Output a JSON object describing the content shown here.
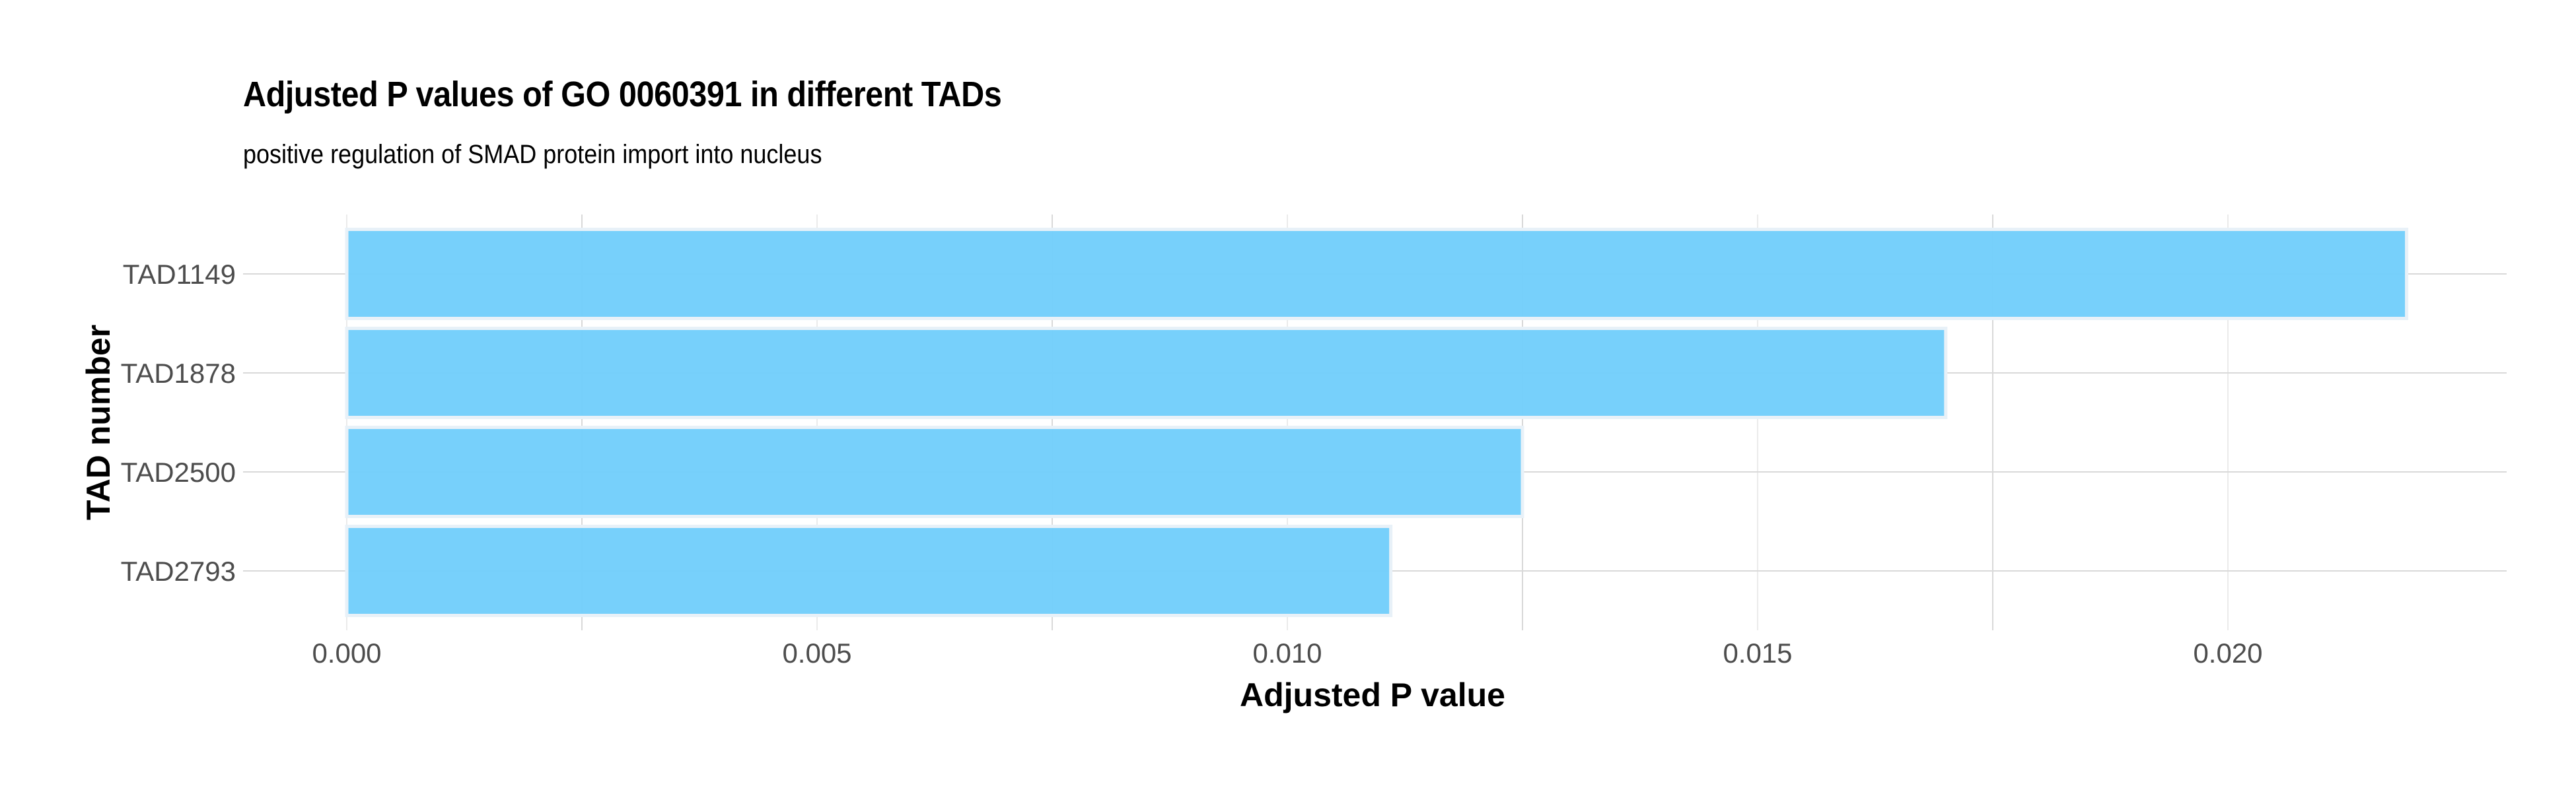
{
  "chart_data": {
    "type": "bar",
    "orientation": "horizontal",
    "title": "Adjusted P values of GO 0060391 in different TADs",
    "subtitle": "positive regulation of SMAD protein import into nucleus",
    "xlabel": "Adjusted P value",
    "ylabel": "TAD number",
    "categories": [
      "TAD1149",
      "TAD1878",
      "TAD2500",
      "TAD2793"
    ],
    "values": [
      0.0219,
      0.017,
      0.0125,
      0.0111
    ],
    "xlim": [
      0,
      0.0225
    ],
    "xticks": [
      0,
      0.005,
      0.01,
      0.015,
      0.02
    ],
    "xtick_labels": [
      "0.000",
      "0.005",
      "0.010",
      "0.015",
      "0.020"
    ],
    "grid": true,
    "bar_color": "#73cefb",
    "bar_edge_color": "#e8f1f8"
  }
}
